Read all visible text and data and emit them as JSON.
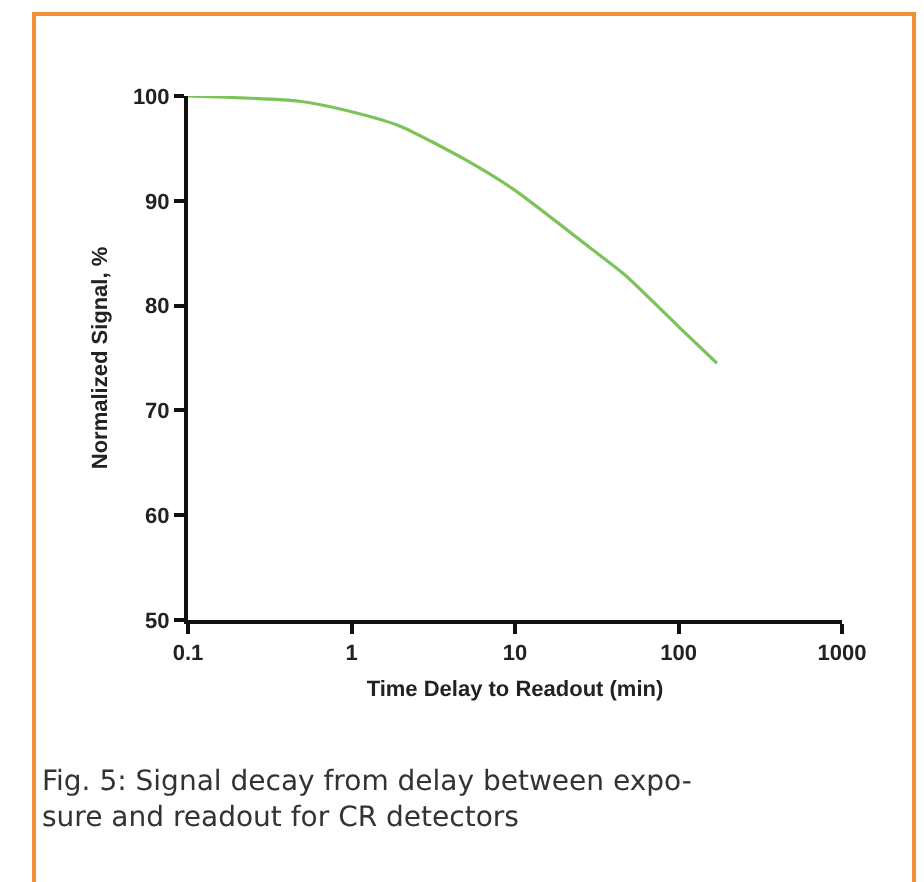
{
  "chart_data": {
    "type": "line",
    "xlabel": "Time Delay to Readout (min)",
    "ylabel": "Normalized Signal, %",
    "x": [
      0.1,
      0.48,
      1,
      2,
      5,
      10,
      30,
      48,
      100,
      172
    ],
    "series": [
      {
        "color": "#7cc35a",
        "values": [
          100,
          99.5,
          98.5,
          97.1,
          93.9,
          91,
          85.3,
          82.8,
          78,
          74.5
        ]
      }
    ],
    "log": "x",
    "xlim": [
      0.1,
      1000
    ],
    "xticks": [
      0.1,
      1,
      10,
      100,
      1000
    ],
    "ylim": [
      50,
      100
    ],
    "yticks": [
      50,
      60,
      70,
      80,
      90,
      100
    ],
    "grid": false,
    "marker": "none",
    "line_style": "solid",
    "annotations": [
      "Fig. 5: Signal decay from delay between expo-\nsure and readout for CR detectors"
    ]
  }
}
